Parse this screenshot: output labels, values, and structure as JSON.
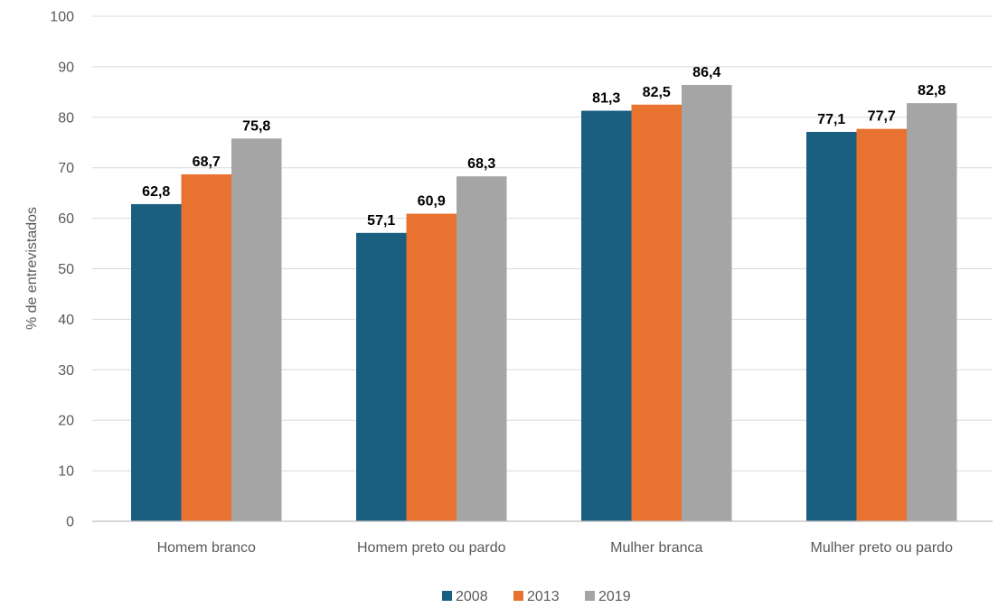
{
  "chart_data": {
    "type": "bar",
    "title": "",
    "xlabel": "",
    "ylabel": "% de entrevistados",
    "ylim": [
      0,
      100
    ],
    "yticks": [
      0,
      10,
      20,
      30,
      40,
      50,
      60,
      70,
      80,
      90,
      100
    ],
    "categories": [
      "Homem branco",
      "Homem preto ou pardo",
      "Mulher branca",
      "Mulher preto ou pardo"
    ],
    "series": [
      {
        "name": "2008",
        "color": "#1a5e80",
        "values": [
          62.8,
          57.1,
          81.3,
          77.1
        ],
        "labels": [
          "62,8",
          "57,1",
          "81,3",
          "77,1"
        ]
      },
      {
        "name": "2013",
        "color": "#e87230",
        "values": [
          68.7,
          60.9,
          82.5,
          77.7
        ],
        "labels": [
          "68,7",
          "60,9",
          "82,5",
          "77,7"
        ]
      },
      {
        "name": "2019",
        "color": "#a5a5a5",
        "values": [
          75.8,
          68.3,
          86.4,
          82.8
        ],
        "labels": [
          "75,8",
          "68,3",
          "86,4",
          "82,8"
        ]
      }
    ],
    "grid": true,
    "legend_position": "bottom"
  }
}
